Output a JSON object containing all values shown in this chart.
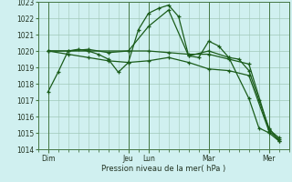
{
  "background_color": "#d0f0f0",
  "plot_bg_color": "#d0f0f0",
  "grid_color": "#a0c8b8",
  "line_color": "#1a5c1a",
  "marker_color": "#1a5c1a",
  "ylabel_min": 1014,
  "ylabel_max": 1023,
  "xlabel": "Pression niveau de la mer( hPa )",
  "day_labels": [
    "Dim",
    "Jeu",
    "Lun",
    "Mar",
    "Mer"
  ],
  "day_positions": [
    0.5,
    4.5,
    5.5,
    8.5,
    11.5
  ],
  "vline_positions": [
    0.5,
    4.5,
    5.5,
    8.5,
    11.5
  ],
  "xlim": [
    0,
    12.5
  ],
  "series": [
    {
      "x": [
        0.5,
        1.0,
        1.5,
        2.0,
        2.5,
        3.0,
        3.5,
        4.0,
        4.5,
        5.0,
        5.5,
        6.0,
        6.5,
        7.0,
        7.5,
        8.0,
        8.5,
        9.0,
        9.5,
        10.0,
        10.5,
        11.0,
        11.5,
        12.0
      ],
      "y": [
        1017.5,
        1018.7,
        1020.0,
        1020.1,
        1020.0,
        1019.8,
        1019.5,
        1018.7,
        1019.3,
        1021.3,
        1022.3,
        1022.6,
        1022.8,
        1022.1,
        1019.7,
        1019.6,
        1020.6,
        1020.3,
        1019.6,
        1019.5,
        1018.8,
        1017.0,
        1015.3,
        1014.5
      ]
    },
    {
      "x": [
        0.5,
        1.5,
        2.5,
        3.5,
        4.5,
        5.5,
        6.5,
        7.5,
        8.5,
        9.5,
        10.5,
        11.5,
        12.0
      ],
      "y": [
        1020.0,
        1020.0,
        1020.1,
        1019.9,
        1020.0,
        1020.0,
        1019.9,
        1019.8,
        1019.8,
        1019.5,
        1019.2,
        1015.2,
        1014.7
      ]
    },
    {
      "x": [
        0.5,
        1.5,
        2.5,
        3.5,
        4.5,
        5.5,
        6.5,
        7.5,
        8.5,
        9.5,
        10.5,
        11.5,
        12.0
      ],
      "y": [
        1020.0,
        1019.8,
        1019.6,
        1019.4,
        1019.3,
        1019.4,
        1019.6,
        1019.3,
        1018.9,
        1018.8,
        1018.5,
        1015.1,
        1014.6
      ]
    },
    {
      "x": [
        0.5,
        2.5,
        4.5,
        5.5,
        6.5,
        7.5,
        8.5,
        9.5,
        10.5,
        11.0,
        11.5,
        12.0
      ],
      "y": [
        1020.0,
        1020.0,
        1020.0,
        1021.5,
        1022.5,
        1019.7,
        1020.0,
        1019.6,
        1017.1,
        1015.3,
        1015.0,
        1014.5
      ]
    }
  ]
}
